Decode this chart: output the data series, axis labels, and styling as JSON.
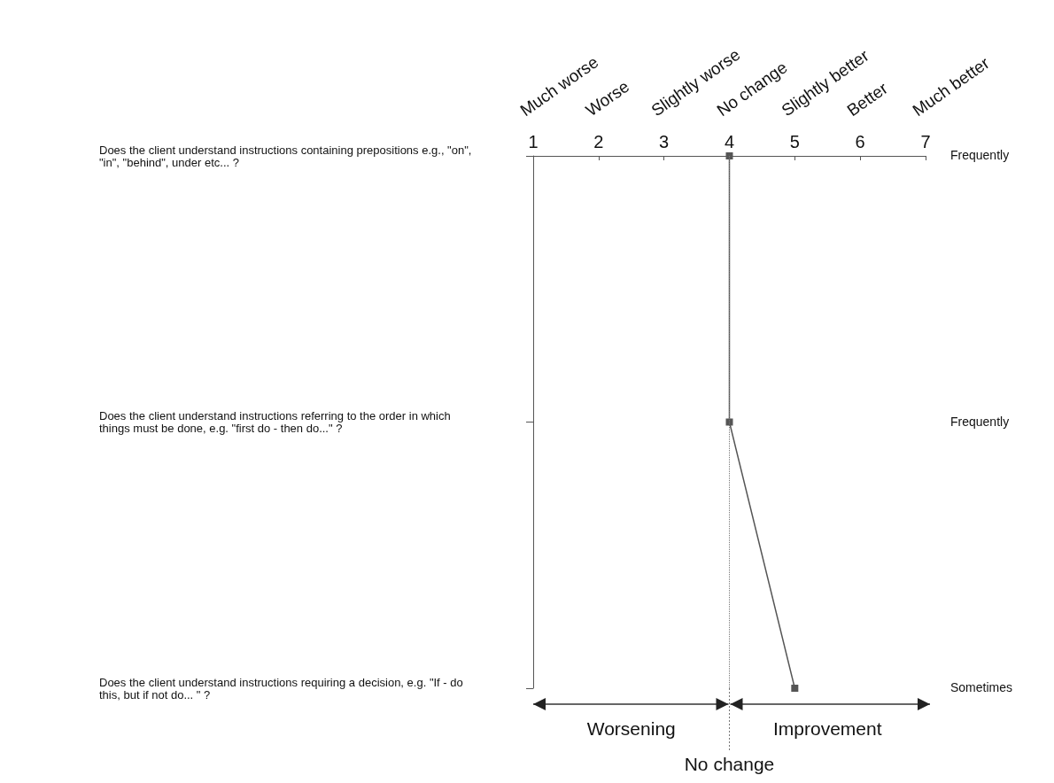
{
  "chart_data": {
    "type": "line",
    "orientation": "horizontal",
    "categories": [
      "Does the client understand instructions containing prepositions e.g., \"on\", \"in\", \"behind\", under etc... ?",
      "Does the client understand instructions referring to the order in which things must be done, e.g. \"first do - then do...\" ?",
      "Does the client understand instructions requiring a decision, e.g. \"If - do this, but if not do... \" ?"
    ],
    "values": [
      4,
      4,
      5
    ],
    "color": "#555555",
    "marker": "square",
    "xlim": [
      1,
      7
    ],
    "xticks": [
      1,
      2,
      3,
      4,
      5,
      6,
      7
    ],
    "ref_lines": [
      {
        "axis": "x",
        "value": 4,
        "label": "No change",
        "line_style": "dotted",
        "color": "#777777"
      }
    ],
    "annotations": [
      "Much worse",
      "Worse",
      "Slightly worse",
      "No change",
      "Slightly better",
      "Better",
      "Much better",
      "Frequently",
      "Frequently",
      "Sometimes",
      "Worsening",
      "Improvement"
    ],
    "grid": false
  }
}
